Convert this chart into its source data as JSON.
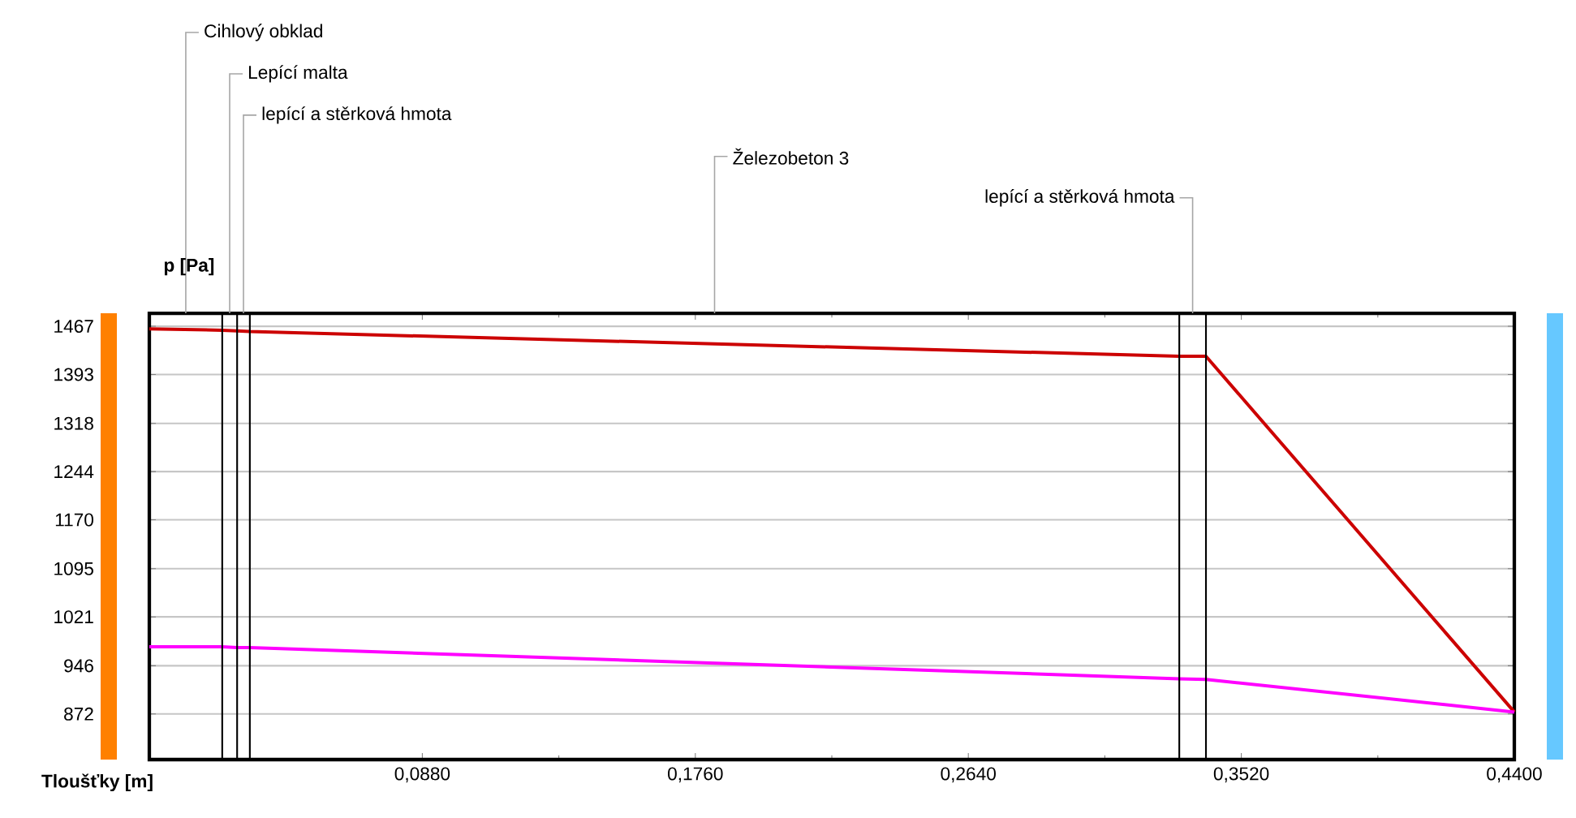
{
  "chart_data": {
    "type": "line",
    "xlabel": "Tloušťky [m]",
    "ylabel": "p [Pa]",
    "xlim": [
      0,
      0.44
    ],
    "ylim": [
      802,
      1487
    ],
    "xticks": [
      {
        "value": 0.088,
        "label": "0,0880"
      },
      {
        "value": 0.176,
        "label": "0,1760"
      },
      {
        "value": 0.264,
        "label": "0,2640"
      },
      {
        "value": 0.352,
        "label": "0,3520"
      },
      {
        "value": 0.44,
        "label": "0,4400"
      }
    ],
    "yticks": [
      872,
      946,
      1021,
      1095,
      1170,
      1244,
      1318,
      1393,
      1467
    ],
    "grid": "y",
    "x": [
      0,
      0.0235,
      0.0283,
      0.0324,
      0.332,
      0.3406,
      0.44
    ],
    "series": [
      {
        "color": "#cc0000",
        "values": [
          1463,
          1461,
          1460,
          1459,
          1421,
          1421,
          875
        ]
      },
      {
        "color": "#ff00ff",
        "values": [
          975,
          975,
          974,
          974,
          926,
          925,
          875
        ]
      }
    ],
    "ref_lines": [
      {
        "axis": "x",
        "value": 0.0235,
        "color": "#000000"
      },
      {
        "axis": "x",
        "value": 0.0283,
        "color": "#000000"
      },
      {
        "axis": "x",
        "value": 0.0324,
        "color": "#000000"
      },
      {
        "axis": "x",
        "value": 0.332,
        "color": "#000000"
      },
      {
        "axis": "x",
        "value": 0.3406,
        "color": "#000000"
      }
    ],
    "annotations": [
      "Cihlový obklad",
      "Lepící malta",
      "lepící a stěrková hmota",
      "Železobeton 3",
      "lepící a stěrková hmota"
    ]
  }
}
